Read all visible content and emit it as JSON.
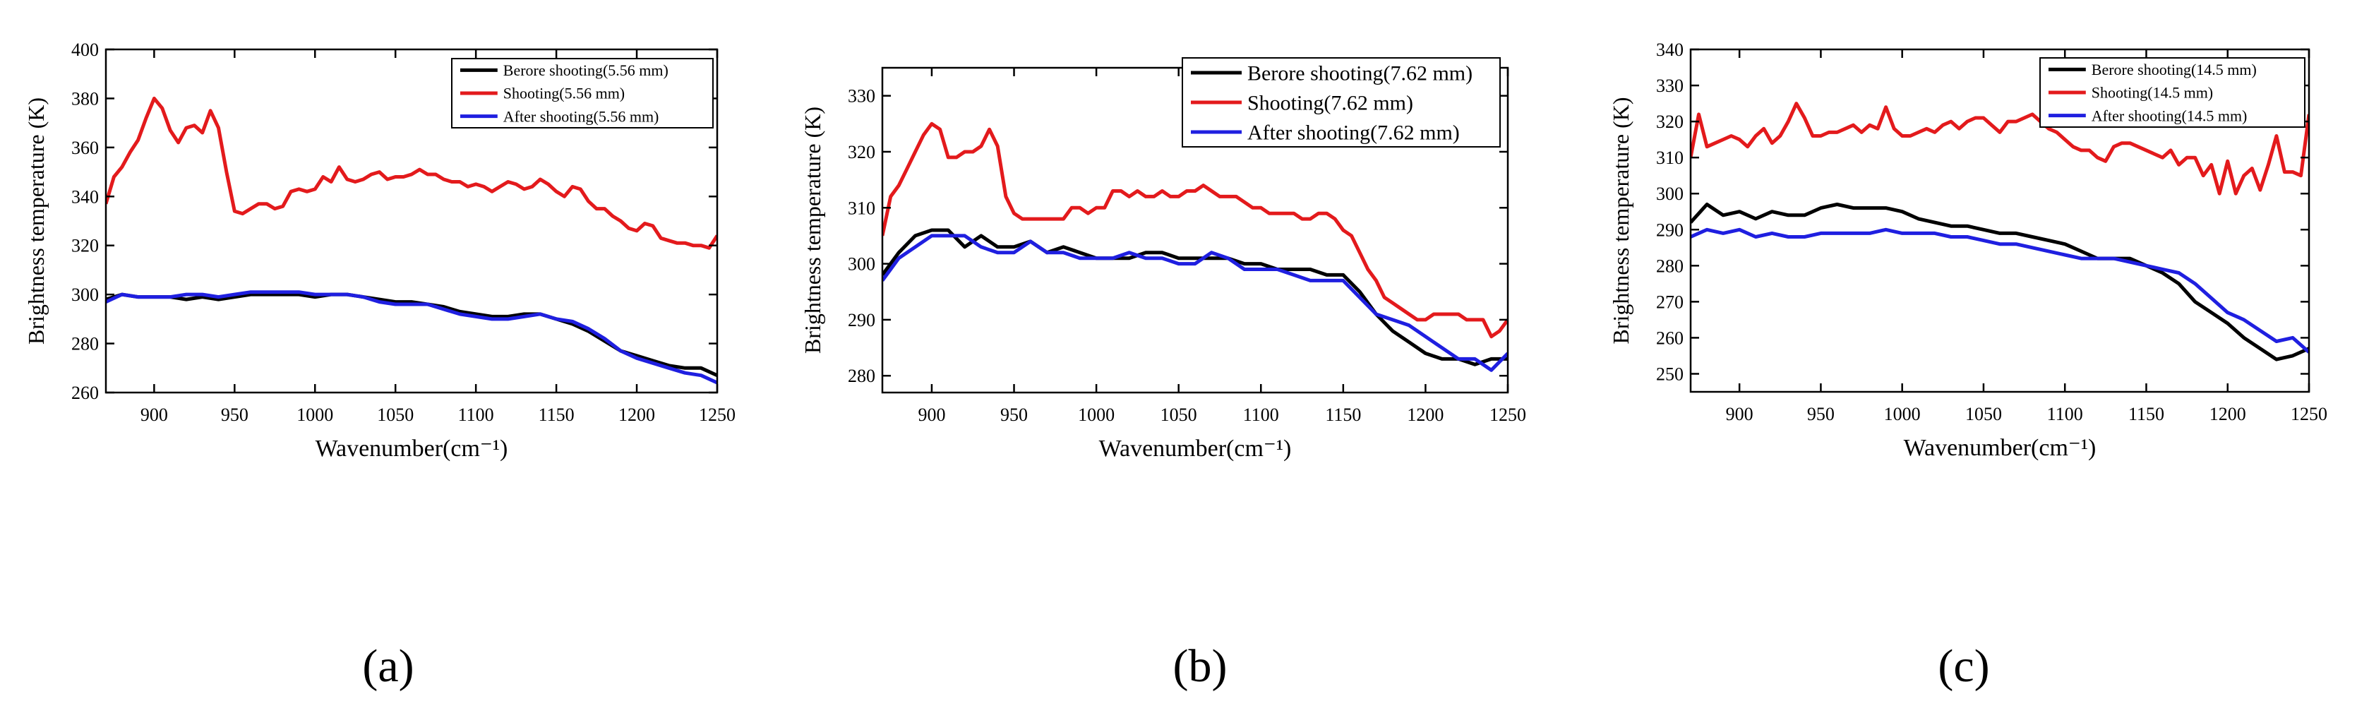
{
  "chart_data": [
    {
      "panel_label": "(a)",
      "type": "line",
      "title": "",
      "xlabel": "Wavenumber(cm⁻¹)",
      "ylabel": "Brightness temperature (K)",
      "xlim": [
        870,
        1250
      ],
      "ylim": [
        260,
        400
      ],
      "xticks": [
        900,
        950,
        1000,
        1050,
        1100,
        1150,
        1200,
        1250
      ],
      "yticks": [
        260,
        280,
        300,
        320,
        340,
        360,
        380,
        400
      ],
      "legend_position": "top-right",
      "series": [
        {
          "name": "Berore shooting(5.56 mm)",
          "color": "#000000",
          "x": [
            870,
            880,
            890,
            900,
            910,
            920,
            930,
            940,
            950,
            960,
            970,
            980,
            990,
            1000,
            1010,
            1020,
            1030,
            1040,
            1050,
            1060,
            1070,
            1080,
            1090,
            1100,
            1110,
            1120,
            1130,
            1140,
            1150,
            1160,
            1170,
            1180,
            1190,
            1200,
            1210,
            1220,
            1230,
            1240,
            1250
          ],
          "y": [
            298,
            300,
            299,
            299,
            299,
            298,
            299,
            298,
            299,
            300,
            300,
            300,
            300,
            299,
            300,
            300,
            299,
            298,
            297,
            297,
            296,
            295,
            293,
            292,
            291,
            291,
            292,
            292,
            290,
            288,
            285,
            281,
            277,
            275,
            273,
            271,
            270,
            270,
            267
          ]
        },
        {
          "name": "Shooting(5.56 mm)",
          "color": "#e31a1c",
          "x": [
            870,
            875,
            880,
            885,
            890,
            895,
            900,
            905,
            910,
            915,
            920,
            925,
            930,
            935,
            940,
            945,
            950,
            955,
            960,
            965,
            970,
            975,
            980,
            985,
            990,
            995,
            1000,
            1005,
            1010,
            1015,
            1020,
            1025,
            1030,
            1035,
            1040,
            1045,
            1050,
            1055,
            1060,
            1065,
            1070,
            1075,
            1080,
            1085,
            1090,
            1095,
            1100,
            1105,
            1110,
            1115,
            1120,
            1125,
            1130,
            1135,
            1140,
            1145,
            1150,
            1155,
            1160,
            1165,
            1170,
            1175,
            1180,
            1185,
            1190,
            1195,
            1200,
            1205,
            1210,
            1215,
            1220,
            1225,
            1230,
            1235,
            1240,
            1245,
            1250
          ],
          "y": [
            337,
            348,
            352,
            358,
            363,
            372,
            380,
            376,
            367,
            362,
            368,
            369,
            366,
            375,
            368,
            350,
            334,
            333,
            335,
            337,
            337,
            335,
            336,
            342,
            343,
            342,
            343,
            348,
            346,
            352,
            347,
            346,
            347,
            349,
            350,
            347,
            348,
            348,
            349,
            351,
            349,
            349,
            347,
            346,
            346,
            344,
            345,
            344,
            342,
            344,
            346,
            345,
            343,
            344,
            347,
            345,
            342,
            340,
            344,
            343,
            338,
            335,
            335,
            332,
            330,
            327,
            326,
            329,
            328,
            323,
            322,
            321,
            321,
            320,
            320,
            319,
            324
          ]
        },
        {
          "name": "After shooting(5.56 mm)",
          "color": "#1f1fe0",
          "x": [
            870,
            880,
            890,
            900,
            910,
            920,
            930,
            940,
            950,
            960,
            970,
            980,
            990,
            1000,
            1010,
            1020,
            1030,
            1040,
            1050,
            1060,
            1070,
            1080,
            1090,
            1100,
            1110,
            1120,
            1130,
            1140,
            1150,
            1160,
            1170,
            1180,
            1190,
            1200,
            1210,
            1220,
            1230,
            1240,
            1250
          ],
          "y": [
            297,
            300,
            299,
            299,
            299,
            300,
            300,
            299,
            300,
            301,
            301,
            301,
            301,
            300,
            300,
            300,
            299,
            297,
            296,
            296,
            296,
            294,
            292,
            291,
            290,
            290,
            291,
            292,
            290,
            289,
            286,
            282,
            277,
            274,
            272,
            270,
            268,
            267,
            264
          ]
        }
      ]
    },
    {
      "panel_label": "(b)",
      "type": "line",
      "title": "",
      "xlabel": "Wavenumber(cm⁻¹)",
      "ylabel": "Brightness temperature (K)",
      "xlim": [
        870,
        1250
      ],
      "ylim": [
        277,
        335
      ],
      "xticks": [
        900,
        950,
        1000,
        1050,
        1100,
        1150,
        1200,
        1250
      ],
      "yticks": [
        280,
        290,
        300,
        310,
        320,
        330
      ],
      "legend_position": "top-right",
      "series": [
        {
          "name": "Berore shooting(7.62 mm)",
          "color": "#000000",
          "x": [
            870,
            880,
            890,
            900,
            910,
            920,
            930,
            940,
            950,
            960,
            970,
            980,
            990,
            1000,
            1010,
            1020,
            1030,
            1040,
            1050,
            1060,
            1070,
            1080,
            1090,
            1100,
            1110,
            1120,
            1130,
            1140,
            1150,
            1160,
            1170,
            1180,
            1190,
            1200,
            1210,
            1220,
            1230,
            1240,
            1250
          ],
          "y": [
            298,
            302,
            305,
            306,
            306,
            303,
            305,
            303,
            303,
            304,
            302,
            303,
            302,
            301,
            301,
            301,
            302,
            302,
            301,
            301,
            301,
            301,
            300,
            300,
            299,
            299,
            299,
            298,
            298,
            295,
            291,
            288,
            286,
            284,
            283,
            283,
            282,
            283,
            283
          ]
        },
        {
          "name": "Shooting(7.62 mm)",
          "color": "#e31a1c",
          "x": [
            870,
            875,
            880,
            885,
            890,
            895,
            900,
            905,
            910,
            915,
            920,
            925,
            930,
            935,
            940,
            945,
            950,
            955,
            960,
            965,
            970,
            975,
            980,
            985,
            990,
            995,
            1000,
            1005,
            1010,
            1015,
            1020,
            1025,
            1030,
            1035,
            1040,
            1045,
            1050,
            1055,
            1060,
            1065,
            1070,
            1075,
            1080,
            1085,
            1090,
            1095,
            1100,
            1105,
            1110,
            1115,
            1120,
            1125,
            1130,
            1135,
            1140,
            1145,
            1150,
            1155,
            1160,
            1165,
            1170,
            1175,
            1180,
            1185,
            1190,
            1195,
            1200,
            1205,
            1210,
            1215,
            1220,
            1225,
            1230,
            1235,
            1240,
            1245,
            1250
          ],
          "y": [
            305,
            312,
            314,
            317,
            320,
            323,
            325,
            324,
            319,
            319,
            320,
            320,
            321,
            324,
            321,
            312,
            309,
            308,
            308,
            308,
            308,
            308,
            308,
            310,
            310,
            309,
            310,
            310,
            313,
            313,
            312,
            313,
            312,
            312,
            313,
            312,
            312,
            313,
            313,
            314,
            313,
            312,
            312,
            312,
            311,
            310,
            310,
            309,
            309,
            309,
            309,
            308,
            308,
            309,
            309,
            308,
            306,
            305,
            302,
            299,
            297,
            294,
            293,
            292,
            291,
            290,
            290,
            291,
            291,
            291,
            291,
            290,
            290,
            290,
            287,
            288,
            290
          ]
        },
        {
          "name": "After shooting(7.62 mm)",
          "color": "#1f1fe0",
          "x": [
            870,
            880,
            890,
            900,
            910,
            920,
            930,
            940,
            950,
            960,
            970,
            980,
            990,
            1000,
            1010,
            1020,
            1030,
            1040,
            1050,
            1060,
            1070,
            1080,
            1090,
            1100,
            1110,
            1120,
            1130,
            1140,
            1150,
            1160,
            1170,
            1180,
            1190,
            1200,
            1210,
            1220,
            1230,
            1240,
            1250
          ],
          "y": [
            297,
            301,
            303,
            305,
            305,
            305,
            303,
            302,
            302,
            304,
            302,
            302,
            301,
            301,
            301,
            302,
            301,
            301,
            300,
            300,
            302,
            301,
            299,
            299,
            299,
            298,
            297,
            297,
            297,
            294,
            291,
            290,
            289,
            287,
            285,
            283,
            283,
            281,
            284
          ]
        }
      ]
    },
    {
      "panel_label": "(c)",
      "type": "line",
      "title": "",
      "xlabel": "Wavenumber(cm⁻¹)",
      "ylabel": "Brightness temperature (K)",
      "xlim": [
        870,
        1250
      ],
      "ylim": [
        245,
        340
      ],
      "xticks": [
        900,
        950,
        1000,
        1050,
        1100,
        1150,
        1200,
        1250
      ],
      "yticks": [
        250,
        260,
        270,
        280,
        290,
        300,
        310,
        320,
        330,
        340
      ],
      "legend_position": "top-right",
      "series": [
        {
          "name": "Berore shooting(14.5 mm)",
          "color": "#000000",
          "x": [
            870,
            880,
            890,
            900,
            910,
            920,
            930,
            940,
            950,
            960,
            970,
            980,
            990,
            1000,
            1010,
            1020,
            1030,
            1040,
            1050,
            1060,
            1070,
            1080,
            1090,
            1100,
            1110,
            1120,
            1130,
            1140,
            1150,
            1160,
            1170,
            1180,
            1190,
            1200,
            1210,
            1220,
            1230,
            1240,
            1250
          ],
          "y": [
            292,
            297,
            294,
            295,
            293,
            295,
            294,
            294,
            296,
            297,
            296,
            296,
            296,
            295,
            293,
            292,
            291,
            291,
            290,
            289,
            289,
            288,
            287,
            286,
            284,
            282,
            282,
            282,
            280,
            278,
            275,
            270,
            267,
            264,
            260,
            257,
            254,
            255,
            257
          ]
        },
        {
          "name": "Shooting(14.5 mm)",
          "color": "#e31a1c",
          "x": [
            870,
            875,
            880,
            885,
            890,
            895,
            900,
            905,
            910,
            915,
            920,
            925,
            930,
            935,
            940,
            945,
            950,
            955,
            960,
            965,
            970,
            975,
            980,
            985,
            990,
            995,
            1000,
            1005,
            1010,
            1015,
            1020,
            1025,
            1030,
            1035,
            1040,
            1045,
            1050,
            1055,
            1060,
            1065,
            1070,
            1075,
            1080,
            1085,
            1090,
            1095,
            1100,
            1105,
            1110,
            1115,
            1120,
            1125,
            1130,
            1135,
            1140,
            1145,
            1150,
            1155,
            1160,
            1165,
            1170,
            1175,
            1180,
            1185,
            1190,
            1195,
            1200,
            1205,
            1210,
            1215,
            1220,
            1225,
            1230,
            1235,
            1240,
            1245,
            1250
          ],
          "y": [
            310,
            322,
            313,
            314,
            315,
            316,
            315,
            313,
            316,
            318,
            314,
            316,
            320,
            325,
            321,
            316,
            316,
            317,
            317,
            318,
            319,
            317,
            319,
            318,
            324,
            318,
            316,
            316,
            317,
            318,
            317,
            319,
            320,
            318,
            320,
            321,
            321,
            319,
            317,
            320,
            320,
            321,
            322,
            320,
            318,
            317,
            315,
            313,
            312,
            312,
            310,
            309,
            313,
            314,
            314,
            313,
            312,
            311,
            310,
            312,
            308,
            310,
            310,
            305,
            308,
            300,
            309,
            300,
            305,
            307,
            301,
            308,
            316,
            306,
            306,
            305,
            322
          ]
        },
        {
          "name": "After shooting(14.5 mm)",
          "color": "#1f1fe0",
          "x": [
            870,
            880,
            890,
            900,
            910,
            920,
            930,
            940,
            950,
            960,
            970,
            980,
            990,
            1000,
            1010,
            1020,
            1030,
            1040,
            1050,
            1060,
            1070,
            1080,
            1090,
            1100,
            1110,
            1120,
            1130,
            1140,
            1150,
            1160,
            1170,
            1180,
            1190,
            1200,
            1210,
            1220,
            1230,
            1240,
            1250
          ],
          "y": [
            288,
            290,
            289,
            290,
            288,
            289,
            288,
            288,
            289,
            289,
            289,
            289,
            290,
            289,
            289,
            289,
            288,
            288,
            287,
            286,
            286,
            285,
            284,
            283,
            282,
            282,
            282,
            281,
            280,
            279,
            278,
            275,
            271,
            267,
            265,
            262,
            259,
            260,
            256
          ]
        }
      ]
    }
  ]
}
